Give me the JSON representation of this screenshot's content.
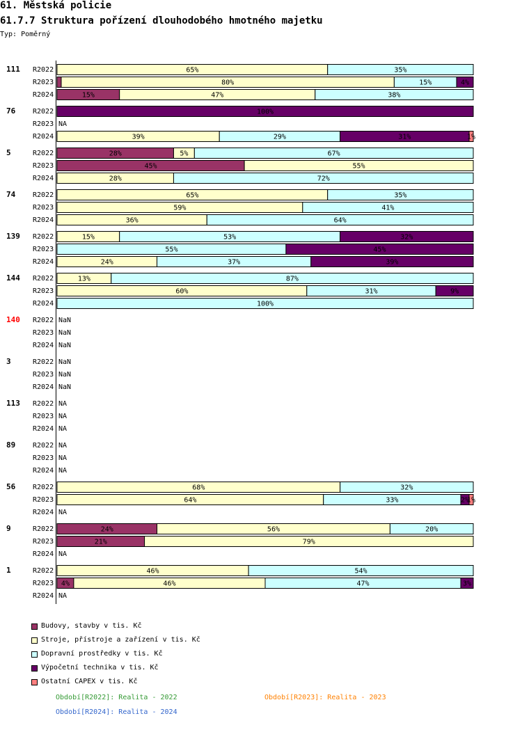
{
  "title": "61. Městská policie",
  "subtitle": "61.7.7 Struktura pořízení dlouhodobého hmotného majetku",
  "type_label": "Typ: Poměrný",
  "colors": {
    "budovy": "#993366",
    "stroje": "#FFFFCC",
    "dopravni": "#CCFFFF",
    "vypocetni": "#660066",
    "ostatni": "#FF8080",
    "highlight_group": "#FF0000",
    "period_2022": "#339933",
    "period_2023": "#FF8000",
    "period_2024": "#3366CC"
  },
  "chart_data": {
    "type": "bar",
    "orientation": "horizontal",
    "stacked": "percent",
    "series": [
      {
        "key": "budovy",
        "name": "Budovy, stavby v tis. Kč"
      },
      {
        "key": "stroje",
        "name": "Stroje, přístroje a zařízení v tis. Kč"
      },
      {
        "key": "dopravni",
        "name": "Dopravní prostředky v tis. Kč"
      },
      {
        "key": "vypocetni",
        "name": "Výpočetní technika v tis. Kč"
      },
      {
        "key": "ostatni",
        "name": "Ostatní CAPEX v tis. Kč"
      }
    ],
    "groups": [
      {
        "label": "111",
        "rows": [
          {
            "period": "R2022",
            "values": [
              0,
              65,
              35,
              0,
              0
            ],
            "labels": [
              "",
              "65%",
              "35%",
              "",
              ""
            ]
          },
          {
            "period": "R2023",
            "values": [
              1,
              80,
              15,
              4,
              0
            ],
            "labels": [
              "",
              "80%",
              "15%",
              "4%",
              ""
            ]
          },
          {
            "period": "R2024",
            "values": [
              15,
              47,
              38,
              0,
              0
            ],
            "labels": [
              "15%",
              "47%",
              "38%",
              "",
              ""
            ]
          }
        ]
      },
      {
        "label": "76",
        "rows": [
          {
            "period": "R2022",
            "values": [
              0,
              0,
              0,
              100,
              0
            ],
            "labels": [
              "",
              "",
              "",
              "100%",
              ""
            ]
          },
          {
            "period": "R2023",
            "na": "NA"
          },
          {
            "period": "R2024",
            "values": [
              0,
              39,
              29,
              31,
              1
            ],
            "labels": [
              "",
              "39%",
              "29%",
              "31%",
              "1%"
            ]
          }
        ]
      },
      {
        "label": "5",
        "rows": [
          {
            "period": "R2022",
            "values": [
              28,
              5,
              67,
              0,
              0
            ],
            "labels": [
              "28%",
              "5%",
              "67%",
              "",
              ""
            ]
          },
          {
            "period": "R2023",
            "values": [
              45,
              55,
              0,
              0,
              0
            ],
            "labels": [
              "45%",
              "55%",
              "",
              "",
              ""
            ]
          },
          {
            "period": "R2024",
            "values": [
              0,
              28,
              72,
              0,
              0
            ],
            "labels": [
              "",
              "28%",
              "72%",
              "",
              ""
            ]
          }
        ]
      },
      {
        "label": "74",
        "rows": [
          {
            "period": "R2022",
            "values": [
              0,
              65,
              35,
              0,
              0
            ],
            "labels": [
              "",
              "65%",
              "35%",
              "",
              ""
            ]
          },
          {
            "period": "R2023",
            "values": [
              0,
              59,
              41,
              0,
              0
            ],
            "labels": [
              "",
              "59%",
              "41%",
              "",
              ""
            ]
          },
          {
            "period": "R2024",
            "values": [
              0,
              36,
              64,
              0,
              0
            ],
            "labels": [
              "",
              "36%",
              "64%",
              "",
              ""
            ]
          }
        ]
      },
      {
        "label": "139",
        "rows": [
          {
            "period": "R2022",
            "values": [
              0,
              15,
              53,
              32,
              0
            ],
            "labels": [
              "",
              "15%",
              "53%",
              "32%",
              ""
            ]
          },
          {
            "period": "R2023",
            "values": [
              0,
              0,
              55,
              45,
              0
            ],
            "labels": [
              "",
              "",
              "55%",
              "45%",
              ""
            ]
          },
          {
            "period": "R2024",
            "values": [
              0,
              24,
              37,
              39,
              0
            ],
            "labels": [
              "",
              "24%",
              "37%",
              "39%",
              ""
            ]
          }
        ]
      },
      {
        "label": "144",
        "rows": [
          {
            "period": "R2022",
            "values": [
              0,
              13,
              87,
              0,
              0
            ],
            "labels": [
              "",
              "13%",
              "87%",
              "",
              ""
            ]
          },
          {
            "period": "R2023",
            "values": [
              0,
              60,
              31,
              9,
              0
            ],
            "labels": [
              "",
              "60%",
              "31%",
              "9%",
              ""
            ]
          },
          {
            "period": "R2024",
            "values": [
              0,
              0,
              100,
              0,
              0
            ],
            "labels": [
              "",
              "",
              "100%",
              "",
              ""
            ]
          }
        ]
      },
      {
        "label": "140",
        "highlight": true,
        "rows": [
          {
            "period": "R2022",
            "na": "NaN"
          },
          {
            "period": "R2023",
            "na": "NaN"
          },
          {
            "period": "R2024",
            "na": "NaN"
          }
        ]
      },
      {
        "label": "3",
        "rows": [
          {
            "period": "R2022",
            "na": "NaN"
          },
          {
            "period": "R2023",
            "na": "NaN"
          },
          {
            "period": "R2024",
            "na": "NaN"
          }
        ]
      },
      {
        "label": "113",
        "rows": [
          {
            "period": "R2022",
            "na": "NA"
          },
          {
            "period": "R2023",
            "na": "NA"
          },
          {
            "period": "R2024",
            "na": "NA"
          }
        ]
      },
      {
        "label": "89",
        "rows": [
          {
            "period": "R2022",
            "na": "NA"
          },
          {
            "period": "R2023",
            "na": "NA"
          },
          {
            "period": "R2024",
            "na": "NA"
          }
        ]
      },
      {
        "label": "56",
        "rows": [
          {
            "period": "R2022",
            "values": [
              0,
              68,
              32,
              0,
              0
            ],
            "labels": [
              "",
              "68%",
              "32%",
              "",
              ""
            ]
          },
          {
            "period": "R2023",
            "values": [
              0,
              64,
              33,
              2,
              1
            ],
            "labels": [
              "",
              "64%",
              "33%",
              "2%",
              "1%"
            ]
          },
          {
            "period": "R2024",
            "na": "NA"
          }
        ]
      },
      {
        "label": "9",
        "rows": [
          {
            "period": "R2022",
            "values": [
              24,
              56,
              20,
              0,
              0
            ],
            "labels": [
              "24%",
              "56%",
              "20%",
              "",
              ""
            ]
          },
          {
            "period": "R2023",
            "values": [
              21,
              79,
              0,
              0,
              0
            ],
            "labels": [
              "21%",
              "79%",
              "",
              "",
              ""
            ]
          },
          {
            "period": "R2024",
            "na": "NA"
          }
        ]
      },
      {
        "label": "1",
        "rows": [
          {
            "period": "R2022",
            "values": [
              0,
              46,
              54,
              0,
              0
            ],
            "labels": [
              "",
              "46%",
              "54%",
              "",
              ""
            ]
          },
          {
            "period": "R2023",
            "values": [
              4,
              46,
              47,
              3,
              0
            ],
            "labels": [
              "4%",
              "46%",
              "47%",
              "3%",
              ""
            ]
          },
          {
            "period": "R2024",
            "na": "NA"
          }
        ]
      }
    ],
    "periods": [
      {
        "label": "Období[R2022]: Realita - 2022",
        "color_key": "period_2022"
      },
      {
        "label": "Období[R2023]: Realita - 2023",
        "color_key": "period_2023"
      },
      {
        "label": "Období[R2024]: Realita - 2024",
        "color_key": "period_2024"
      }
    ]
  }
}
